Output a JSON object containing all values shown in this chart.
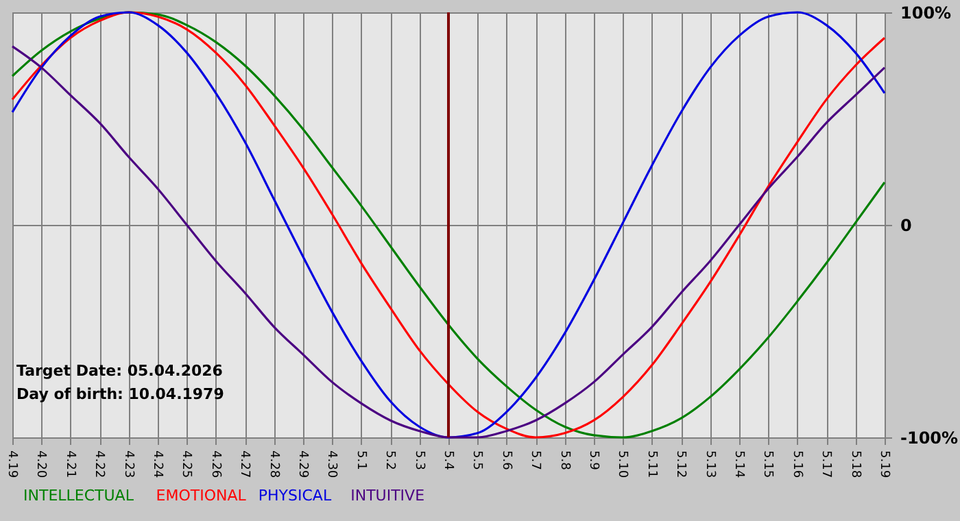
{
  "chart_data": {
    "type": "line",
    "categories": [
      "4.19",
      "4.20",
      "4.21",
      "4.22",
      "4.23",
      "4.24",
      "4.25",
      "4.26",
      "4.27",
      "4.28",
      "4.29",
      "4.30",
      "5.1",
      "5.2",
      "5.3",
      "5.4",
      "5.5",
      "5.6",
      "5.7",
      "5.8",
      "5.9",
      "5.10",
      "5.11",
      "5.12",
      "5.13",
      "5.14",
      "5.15",
      "5.16",
      "5.17",
      "5.18",
      "5.19"
    ],
    "series": [
      {
        "name": "INTELLECTUAL",
        "color": "#008000",
        "values": [
          70,
          82,
          91,
          97,
          100,
          99,
          94,
          86,
          75,
          61,
          45,
          27,
          9,
          -10,
          -29,
          -47,
          -63,
          -76,
          -87,
          -95,
          -99,
          -100,
          -97,
          -91,
          -81,
          -68,
          -53,
          -36,
          -18,
          1,
          20
        ]
      },
      {
        "name": "EMOTIONAL",
        "color": "#ff0000",
        "values": [
          59,
          75,
          88,
          96,
          100,
          98,
          92,
          81,
          66,
          47,
          27,
          5,
          -18,
          -39,
          -59,
          -75,
          -88,
          -96,
          -100,
          -98,
          -92,
          -81,
          -66,
          -47,
          -27,
          -5,
          18,
          39,
          59,
          75,
          88
        ]
      },
      {
        "name": "PHYSICAL",
        "color": "#0000e0",
        "values": [
          53,
          74,
          89,
          98,
          100,
          94,
          81,
          62,
          39,
          12,
          -15,
          -41,
          -64,
          -83,
          -95,
          -100,
          -98,
          -88,
          -72,
          -51,
          -26,
          1,
          28,
          53,
          74,
          89,
          98,
          100,
          94,
          81,
          62
        ]
      },
      {
        "name": "INTUITIVE",
        "color": "#4b0082",
        "values": [
          84,
          74,
          61,
          48,
          32,
          17,
          0,
          -17,
          -32,
          -48,
          -61,
          -74,
          -84,
          -92,
          -97,
          -100,
          -100,
          -97,
          -92,
          -84,
          -74,
          -61,
          -48,
          -32,
          -17,
          0,
          17,
          32,
          48,
          61,
          74
        ]
      }
    ],
    "ylim": [
      -100,
      100
    ],
    "yticks": [
      {
        "value": 100,
        "label": "100%"
      },
      0,
      {
        "value": -100,
        "label": "-100%"
      }
    ],
    "ref_lines": [
      {
        "axis": "x",
        "value": "5.4",
        "color": "#800000"
      }
    ],
    "annotations": [
      "Target Date: 05.04.2026",
      "Day of birth: 10.04.1979"
    ],
    "grid": true,
    "legend": "bottom",
    "marker": "none",
    "line_style": "solid"
  }
}
